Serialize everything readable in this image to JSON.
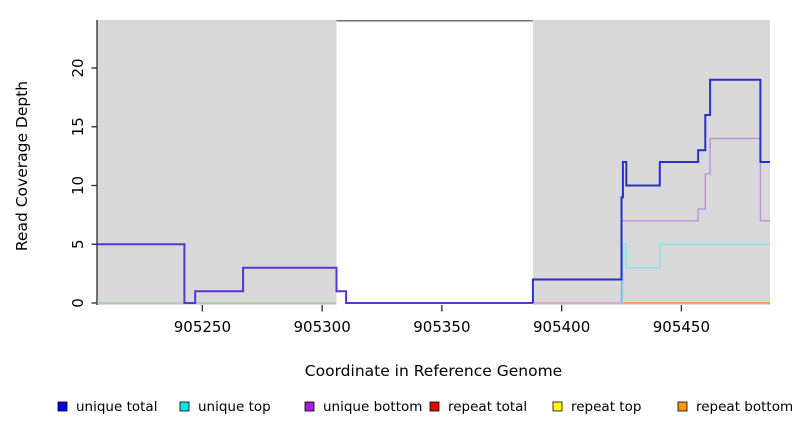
{
  "chart_data": {
    "type": "line",
    "subtype": "step-coverage-plot",
    "title": "",
    "xlabel": "Coordinate in Reference Genome",
    "ylabel": "Read Coverage Depth",
    "xlim": [
      905206,
      905487
    ],
    "ylim": [
      0,
      24
    ],
    "x_ticks": [
      905250,
      905300,
      905350,
      905400,
      905450
    ],
    "y_ticks": [
      0,
      5,
      10,
      15,
      20
    ],
    "grid": false,
    "legend_position": "bottom",
    "axis_color": "#2a2a2a",
    "text_color": "#000000",
    "plot_background": "#ffffff",
    "shaded_regions": [
      {
        "x0": 905206,
        "x1": 905306,
        "color": "#d9d9d9"
      },
      {
        "x0": 905388,
        "x1": 905487,
        "color": "#d9d9d9"
      }
    ],
    "gap_top_border": {
      "x0": 905306,
      "x1": 905388,
      "color": "#737373"
    },
    "series": [
      {
        "name": "baseline-left-blend",
        "label": "unique top + repeat top (overlapping at 0)",
        "color": "#8fcb8f",
        "width": 1.2,
        "points": [
          [
            905206,
            0
          ],
          [
            905306,
            0
          ]
        ]
      },
      {
        "name": "baseline-right-blend",
        "label": "repeat total + unique bottom (overlapping at 0)",
        "color": "#e287c8",
        "width": 1.2,
        "points": [
          [
            905388,
            0
          ],
          [
            905425,
            0
          ]
        ]
      },
      {
        "name": "repeat-bottom",
        "label": "repeat bottom",
        "color": "#ff9912",
        "width": 1.6,
        "points": [
          [
            905425,
            0
          ],
          [
            905487,
            0
          ]
        ]
      },
      {
        "name": "unique-top",
        "label": "unique top",
        "color": "#7de9f2",
        "width": 1.4,
        "points": [
          [
            905425.6,
            0
          ],
          [
            905425.6,
            5
          ],
          [
            905427,
            5
          ],
          [
            905427,
            3
          ],
          [
            905441,
            3
          ],
          [
            905441,
            5
          ],
          [
            905487,
            5
          ]
        ]
      },
      {
        "name": "unique-bottom",
        "label": "unique bottom",
        "color": "#bd92de",
        "width": 1.4,
        "points": [
          [
            905425,
            0
          ],
          [
            905425,
            7
          ],
          [
            905457,
            7
          ],
          [
            905457,
            8
          ],
          [
            905460,
            8
          ],
          [
            905460,
            11
          ],
          [
            905462,
            11
          ],
          [
            905462,
            14
          ],
          [
            905483,
            14
          ],
          [
            905483,
            7
          ],
          [
            905487,
            7
          ]
        ]
      },
      {
        "name": "unique-total-left",
        "label": "unique total (coincides with unique bottom)",
        "color": "#5736d8",
        "width": 2,
        "points": [
          [
            905206,
            5
          ],
          [
            905242.5,
            5
          ],
          [
            905242.5,
            0
          ],
          [
            905247,
            0
          ],
          [
            905247,
            1
          ],
          [
            905267,
            1
          ],
          [
            905267,
            3
          ],
          [
            905306,
            3
          ],
          [
            905306,
            1
          ],
          [
            905310,
            1
          ],
          [
            905310,
            0
          ],
          [
            905388,
            0
          ]
        ]
      },
      {
        "name": "unique-total-right",
        "label": "unique total",
        "color": "#2d2dd2",
        "width": 2,
        "points": [
          [
            905388,
            0
          ],
          [
            905388,
            2
          ],
          [
            905425,
            2
          ],
          [
            905425,
            9
          ],
          [
            905425.6,
            9
          ],
          [
            905425.6,
            12
          ],
          [
            905427,
            12
          ],
          [
            905427,
            10
          ],
          [
            905441,
            10
          ],
          [
            905441,
            12
          ],
          [
            905457,
            12
          ],
          [
            905457,
            13
          ],
          [
            905460,
            13
          ],
          [
            905460,
            16
          ],
          [
            905462,
            16
          ],
          [
            905462,
            19
          ],
          [
            905483,
            19
          ],
          [
            905483,
            12
          ],
          [
            905487,
            12
          ]
        ]
      }
    ],
    "legend": [
      {
        "label": "unique total",
        "color": "#0000e6"
      },
      {
        "label": "unique top",
        "color": "#00e6e6"
      },
      {
        "label": "unique bottom",
        "color": "#a21fd6"
      },
      {
        "label": "repeat total",
        "color": "#e60000"
      },
      {
        "label": "repeat top",
        "color": "#ffff00"
      },
      {
        "label": "repeat bottom",
        "color": "#ff9900"
      }
    ]
  }
}
